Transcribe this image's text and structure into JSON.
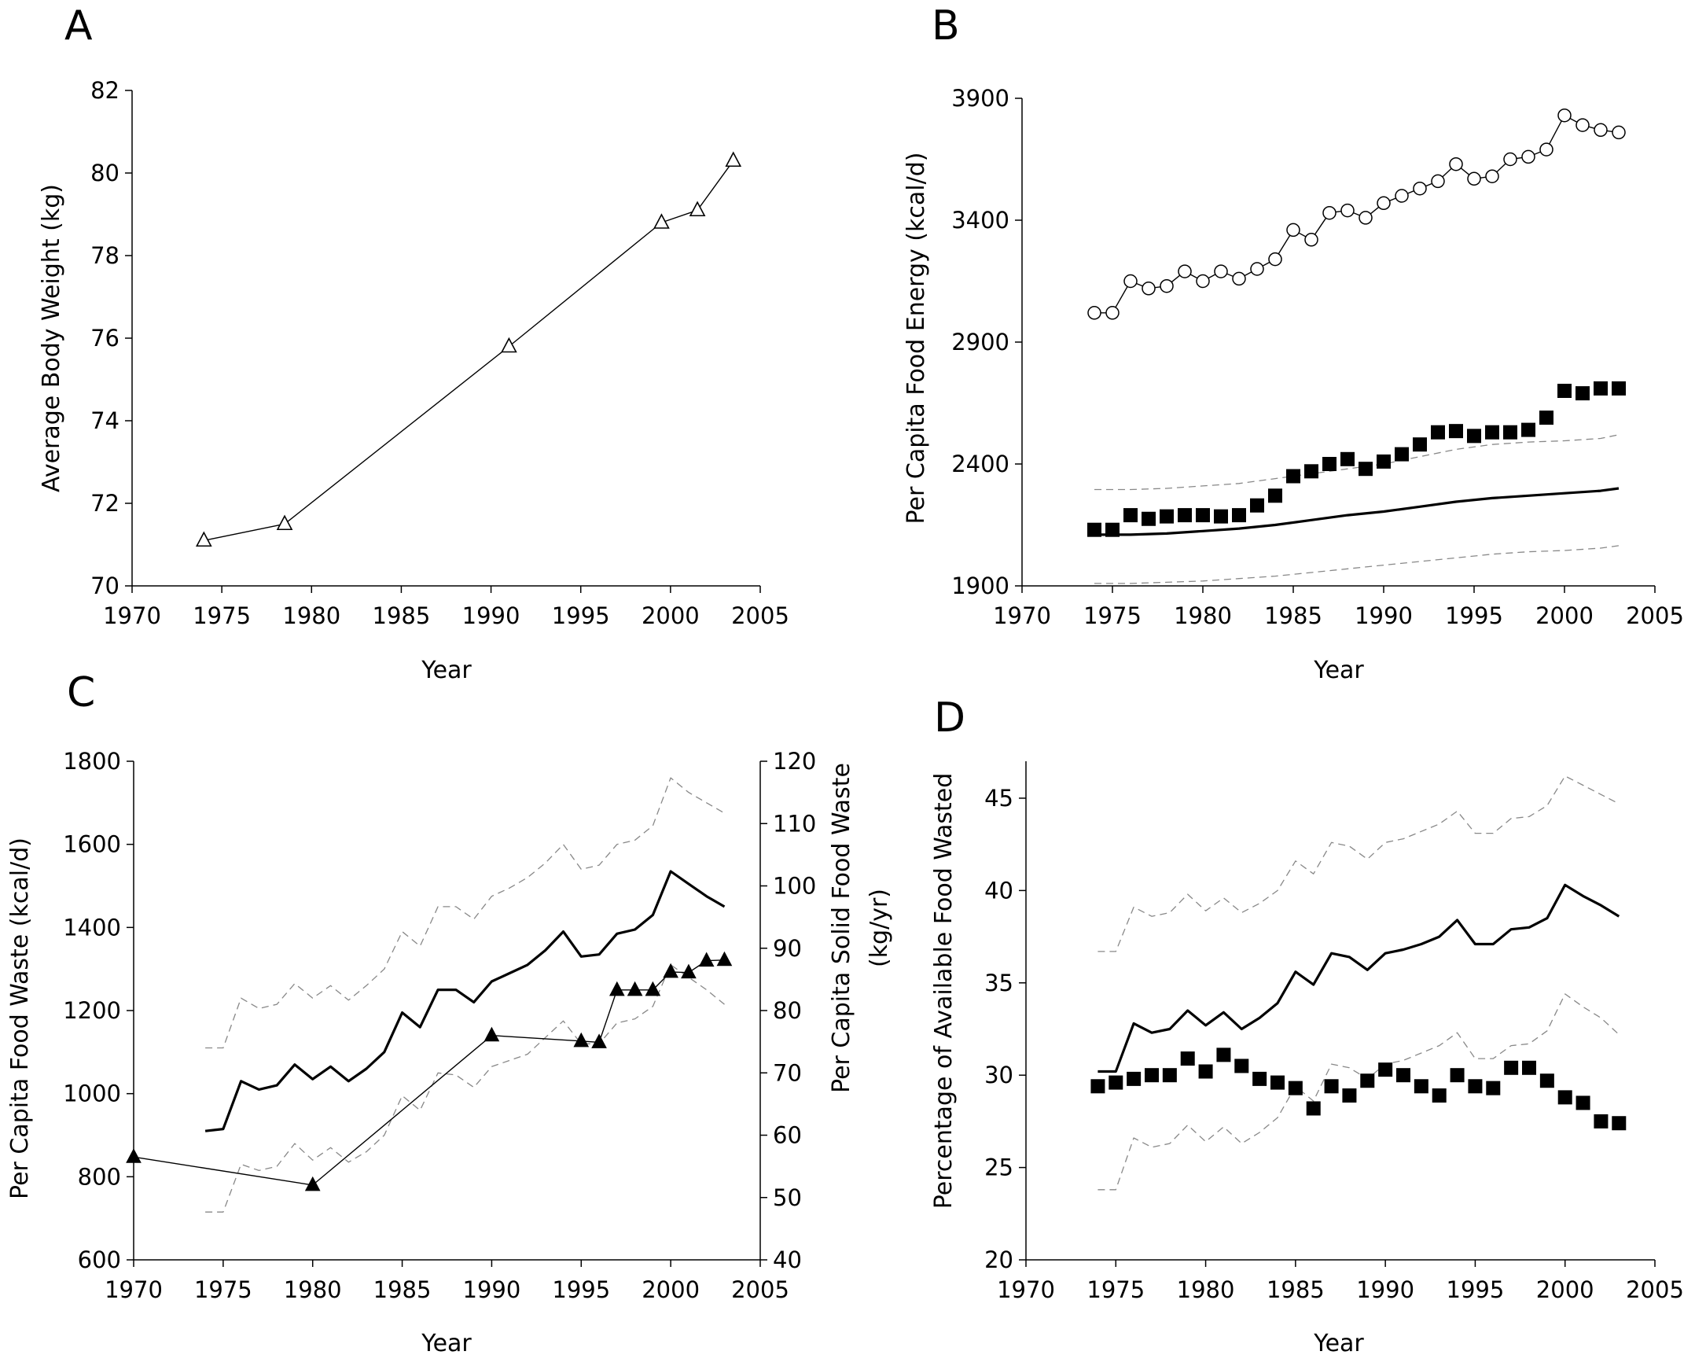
{
  "chart_data": [
    {
      "panel": "A",
      "type": "line",
      "xlabel": "Year",
      "ylabel": "Average Body Weight (kg)",
      "xlim": [
        1970,
        2005
      ],
      "ylim": [
        70,
        82
      ],
      "xticks": [
        1970,
        1975,
        1980,
        1985,
        1990,
        1995,
        2000,
        2005
      ],
      "yticks": [
        70,
        72,
        74,
        76,
        78,
        80,
        82
      ],
      "series": [
        {
          "marker": "open-triangle",
          "line": "solid-thin",
          "x": [
            1974,
            1978.5,
            1991,
            1999.5,
            2001.5,
            2003.5
          ],
          "y": [
            71.1,
            71.5,
            75.8,
            78.8,
            79.1,
            80.3
          ]
        }
      ]
    },
    {
      "panel": "B",
      "type": "line",
      "xlabel": "Year",
      "ylabel": "Per Capita Food Energy (kcal/d)",
      "xlim": [
        1970,
        2005
      ],
      "ylim": [
        1900,
        3900
      ],
      "xticks": [
        1970,
        1975,
        1980,
        1985,
        1990,
        1995,
        2000,
        2005
      ],
      "yticks": [
        1900,
        2400,
        2900,
        3400,
        3900
      ],
      "series": [
        {
          "marker": "open-circle",
          "line": "solid-thin",
          "x": [
            1974,
            1975,
            1976,
            1977,
            1978,
            1979,
            1980,
            1981,
            1982,
            1983,
            1984,
            1985,
            1986,
            1987,
            1988,
            1989,
            1990,
            1991,
            1992,
            1993,
            1994,
            1995,
            1996,
            1997,
            1998,
            1999,
            2000,
            2001,
            2002,
            2003
          ],
          "y": [
            3020,
            3020,
            3150,
            3120,
            3130,
            3190,
            3150,
            3190,
            3160,
            3200,
            3240,
            3360,
            3320,
            3430,
            3440,
            3410,
            3470,
            3500,
            3530,
            3560,
            3630,
            3570,
            3580,
            3650,
            3660,
            3690,
            3830,
            3790,
            3770,
            3760
          ]
        },
        {
          "marker": "filled-square",
          "line": "none",
          "x": [
            1974,
            1975,
            1976,
            1977,
            1978,
            1979,
            1980,
            1981,
            1982,
            1983,
            1984,
            1985,
            1986,
            1987,
            1988,
            1989,
            1990,
            1991,
            1992,
            1993,
            1994,
            1995,
            1996,
            1997,
            1998,
            1999,
            2000,
            2001,
            2002,
            2003
          ],
          "y": [
            2130,
            2130,
            2190,
            2175,
            2185,
            2190,
            2190,
            2185,
            2190,
            2230,
            2270,
            2350,
            2370,
            2400,
            2420,
            2380,
            2410,
            2440,
            2480,
            2530,
            2535,
            2515,
            2530,
            2530,
            2540,
            2590,
            2700,
            2690,
            2710,
            2710
          ]
        },
        {
          "marker": "none",
          "line": "solid-thick",
          "x": [
            1974,
            1976,
            1978,
            1980,
            1982,
            1984,
            1986,
            1988,
            1990,
            1992,
            1994,
            1996,
            1998,
            2000,
            2002,
            2003
          ],
          "y": [
            2110,
            2110,
            2115,
            2125,
            2135,
            2150,
            2170,
            2190,
            2205,
            2225,
            2245,
            2260,
            2270,
            2280,
            2290,
            2300
          ]
        },
        {
          "marker": "none",
          "line": "dashed-upper",
          "x": [
            1974,
            1976,
            1978,
            1980,
            1982,
            1984,
            1986,
            1988,
            1990,
            1992,
            1994,
            1996,
            1998,
            2000,
            2002,
            2003
          ],
          "y": [
            2295,
            2295,
            2300,
            2310,
            2320,
            2340,
            2360,
            2380,
            2400,
            2430,
            2460,
            2480,
            2490,
            2495,
            2505,
            2520
          ]
        },
        {
          "marker": "none",
          "line": "dashed-lower",
          "x": [
            1974,
            1976,
            1978,
            1980,
            1982,
            1984,
            1986,
            1988,
            1990,
            1992,
            1994,
            1996,
            1998,
            2000,
            2002,
            2003
          ],
          "y": [
            1910,
            1910,
            1915,
            1920,
            1930,
            1940,
            1955,
            1970,
            1985,
            2000,
            2015,
            2030,
            2040,
            2045,
            2055,
            2065
          ]
        }
      ]
    },
    {
      "panel": "C",
      "type": "line",
      "xlabel": "Year",
      "ylabel": "Per Capita Food Waste (kcal/d)",
      "y2label_line1": "Per Capita Solid Food Waste",
      "y2label_line2": "(kg/yr)",
      "xlim": [
        1970,
        2005
      ],
      "ylim": [
        600,
        1800
      ],
      "y2lim": [
        40,
        120
      ],
      "xticks": [
        1970,
        1975,
        1980,
        1985,
        1990,
        1995,
        2000,
        2005
      ],
      "yticks": [
        600,
        800,
        1000,
        1200,
        1400,
        1600,
        1800
      ],
      "y2ticks": [
        40,
        50,
        60,
        70,
        80,
        90,
        100,
        110,
        120
      ],
      "series": [
        {
          "marker": "none",
          "line": "solid-thick",
          "axis": "left",
          "x": [
            1974,
            1975,
            1976,
            1977,
            1978,
            1979,
            1980,
            1981,
            1982,
            1983,
            1984,
            1985,
            1986,
            1987,
            1988,
            1989,
            1990,
            1991,
            1992,
            1993,
            1994,
            1995,
            1996,
            1997,
            1998,
            1999,
            2000,
            2001,
            2002,
            2003
          ],
          "y": [
            910,
            915,
            1030,
            1010,
            1020,
            1070,
            1035,
            1065,
            1030,
            1060,
            1100,
            1195,
            1160,
            1250,
            1250,
            1220,
            1270,
            1290,
            1310,
            1345,
            1390,
            1330,
            1335,
            1385,
            1395,
            1430,
            1535,
            1505,
            1475,
            1450
          ]
        },
        {
          "marker": "none",
          "line": "dashed-upper",
          "axis": "left",
          "x": [
            1974,
            1975,
            1976,
            1977,
            1978,
            1979,
            1980,
            1981,
            1982,
            1983,
            1984,
            1985,
            1986,
            1987,
            1988,
            1989,
            1990,
            1991,
            1992,
            1993,
            1994,
            1995,
            1996,
            1997,
            1998,
            1999,
            2000,
            2001,
            2002,
            2003
          ],
          "y": [
            1110,
            1110,
            1230,
            1205,
            1215,
            1265,
            1230,
            1260,
            1225,
            1260,
            1300,
            1390,
            1355,
            1450,
            1450,
            1420,
            1475,
            1495,
            1520,
            1555,
            1600,
            1540,
            1550,
            1600,
            1610,
            1645,
            1760,
            1725,
            1700,
            1675
          ]
        },
        {
          "marker": "none",
          "line": "dashed-lower",
          "axis": "left",
          "x": [
            1974,
            1975,
            1976,
            1977,
            1978,
            1979,
            1980,
            1981,
            1982,
            1983,
            1984,
            1985,
            1986,
            1987,
            1988,
            1989,
            1990,
            1991,
            1992,
            1993,
            1994,
            1995,
            1996,
            1997,
            1998,
            1999,
            2000,
            2001,
            2002,
            2003
          ],
          "y": [
            715,
            715,
            830,
            815,
            825,
            880,
            840,
            870,
            835,
            860,
            900,
            995,
            960,
            1050,
            1045,
            1015,
            1065,
            1080,
            1095,
            1135,
            1175,
            1120,
            1120,
            1170,
            1180,
            1210,
            1310,
            1280,
            1250,
            1215
          ]
        },
        {
          "marker": "filled-triangle",
          "line": "solid-thin",
          "axis": "right",
          "x": [
            1970,
            1980,
            1990,
            1995,
            1996,
            1997,
            1998,
            1999,
            2000,
            2001,
            2002,
            2003
          ],
          "y": [
            56.5,
            52,
            76,
            75.1,
            74.9,
            83.3,
            83.3,
            83.3,
            86.2,
            86.1,
            88,
            88.1
          ]
        }
      ]
    },
    {
      "panel": "D",
      "type": "line",
      "xlabel": "Year",
      "ylabel": "Percentage of Available Food Wasted",
      "xlim": [
        1970,
        2005
      ],
      "ylim": [
        20,
        47
      ],
      "xticks": [
        1970,
        1975,
        1980,
        1985,
        1990,
        1995,
        2000,
        2005
      ],
      "yticks": [
        20,
        25,
        30,
        35,
        40,
        45
      ],
      "series": [
        {
          "marker": "filled-square",
          "line": "none",
          "x": [
            1974,
            1975,
            1976,
            1977,
            1978,
            1979,
            1980,
            1981,
            1982,
            1983,
            1984,
            1985,
            1986,
            1987,
            1988,
            1989,
            1990,
            1991,
            1992,
            1993,
            1994,
            1995,
            1996,
            1997,
            1998,
            1999,
            2000,
            2001,
            2002,
            2003
          ],
          "y": [
            29.4,
            29.6,
            29.8,
            30.0,
            30.0,
            30.9,
            30.2,
            31.1,
            30.5,
            29.8,
            29.6,
            29.3,
            28.2,
            29.4,
            28.9,
            29.7,
            30.3,
            30.0,
            29.4,
            28.9,
            30.0,
            29.4,
            29.3,
            30.4,
            30.4,
            29.7,
            28.8,
            28.5,
            27.5,
            27.4
          ]
        },
        {
          "marker": "none",
          "line": "solid-thick",
          "x": [
            1974,
            1975,
            1976,
            1977,
            1978,
            1979,
            1980,
            1981,
            1982,
            1983,
            1984,
            1985,
            1986,
            1987,
            1988,
            1989,
            1990,
            1991,
            1992,
            1993,
            1994,
            1995,
            1996,
            1997,
            1998,
            1999,
            2000,
            2001,
            2002,
            2003
          ],
          "y": [
            30.2,
            30.2,
            32.8,
            32.3,
            32.5,
            33.5,
            32.7,
            33.4,
            32.5,
            33.1,
            33.9,
            35.6,
            34.9,
            36.6,
            36.4,
            35.7,
            36.6,
            36.8,
            37.1,
            37.5,
            38.4,
            37.1,
            37.1,
            37.9,
            38.0,
            38.5,
            40.3,
            39.7,
            39.2,
            38.6
          ]
        },
        {
          "marker": "none",
          "line": "dashed-upper",
          "x": [
            1974,
            1975,
            1976,
            1977,
            1978,
            1979,
            1980,
            1981,
            1982,
            1983,
            1984,
            1985,
            1986,
            1987,
            1988,
            1989,
            1990,
            1991,
            1992,
            1993,
            1994,
            1995,
            1996,
            1997,
            1998,
            1999,
            2000,
            2001,
            2002,
            2003
          ],
          "y": [
            36.7,
            36.7,
            39.1,
            38.6,
            38.8,
            39.8,
            38.9,
            39.6,
            38.8,
            39.3,
            40.0,
            41.6,
            40.9,
            42.6,
            42.4,
            41.7,
            42.6,
            42.8,
            43.2,
            43.6,
            44.3,
            43.1,
            43.1,
            43.9,
            44.0,
            44.6,
            46.2,
            45.7,
            45.2,
            44.7
          ]
        },
        {
          "marker": "none",
          "line": "dashed-lower",
          "x": [
            1974,
            1975,
            1976,
            1977,
            1978,
            1979,
            1980,
            1981,
            1982,
            1983,
            1984,
            1985,
            1986,
            1987,
            1988,
            1989,
            1990,
            1991,
            1992,
            1993,
            1994,
            1995,
            1996,
            1997,
            1998,
            1999,
            2000,
            2001,
            2002,
            2003
          ],
          "y": [
            23.8,
            23.8,
            26.6,
            26.1,
            26.3,
            27.3,
            26.4,
            27.2,
            26.3,
            26.9,
            27.7,
            29.4,
            28.6,
            30.6,
            30.4,
            29.8,
            30.6,
            30.8,
            31.2,
            31.6,
            32.3,
            30.9,
            30.9,
            31.6,
            31.7,
            32.4,
            34.4,
            33.7,
            33.1,
            32.2
          ]
        }
      ]
    }
  ]
}
